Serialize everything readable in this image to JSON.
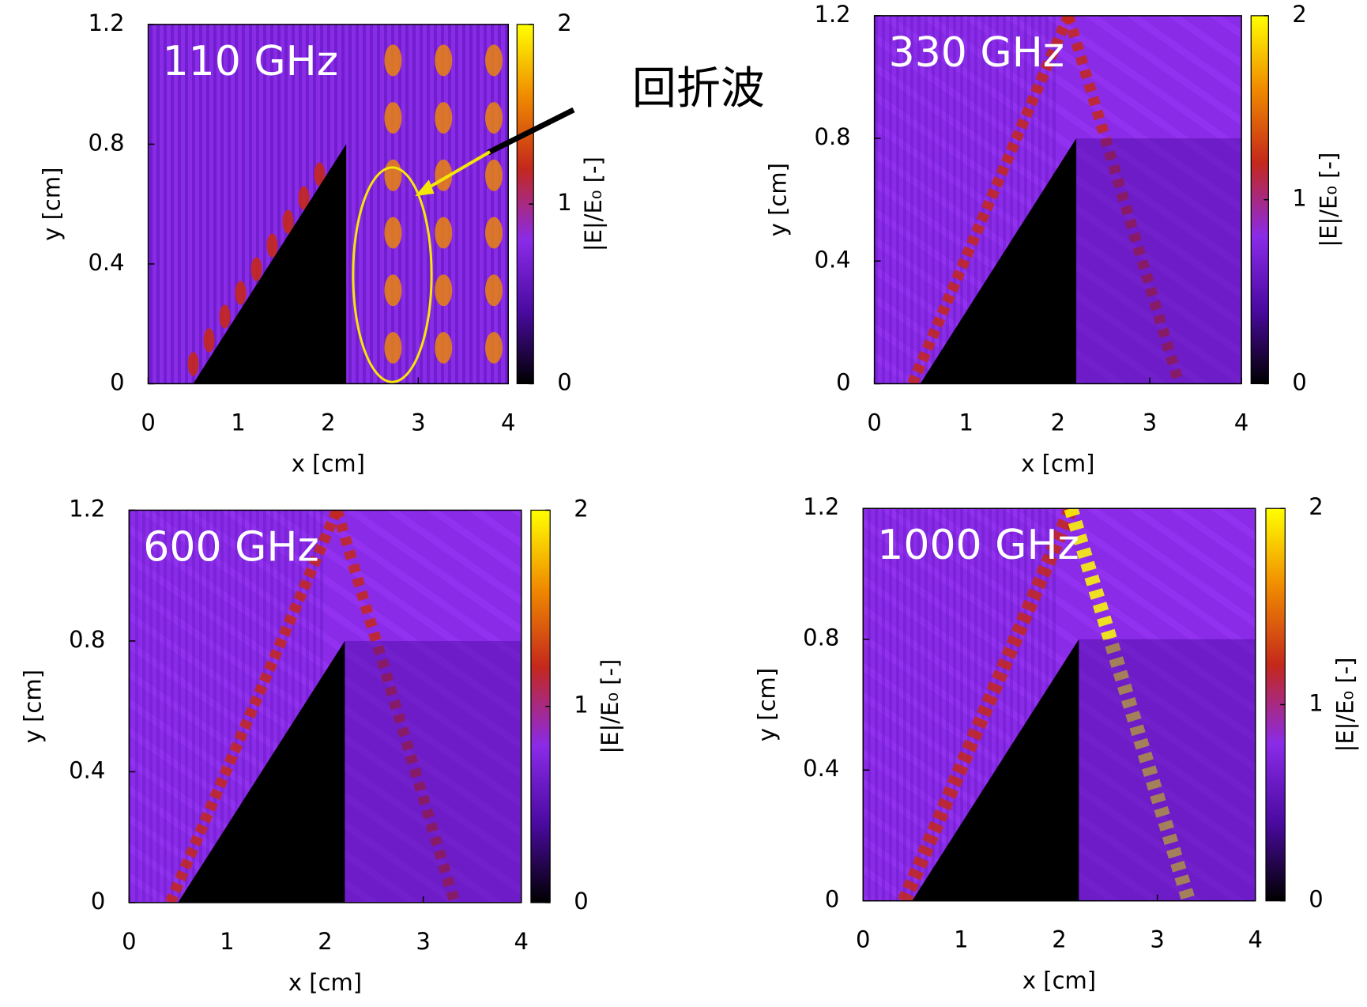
{
  "chart_data": [
    {
      "type": "heatmap",
      "title": "110 GHz",
      "xlabel": "x [cm]",
      "ylabel": "y [cm]",
      "xlim": [
        0,
        4
      ],
      "ylim": [
        0,
        1.2
      ],
      "xticks": [
        0,
        1,
        2,
        3,
        4
      ],
      "yticks": [
        0,
        0.4,
        0.8,
        1.2
      ],
      "colorbar": {
        "label": "|E|/E₀ [-]",
        "lim": [
          0,
          2
        ],
        "ticks": [
          0,
          1,
          2
        ],
        "colors": [
          "#000000",
          "#4a0aa0",
          "#8a2be8",
          "#c4281c",
          "#f08a00",
          "#ffff00"
        ]
      },
      "wedge": {
        "x": [
          0.5,
          2.2,
          2.2
        ],
        "y": [
          0,
          0.8,
          0
        ]
      },
      "annotation": "回折波"
    },
    {
      "type": "heatmap",
      "title": "330 GHz",
      "xlabel": "x [cm]",
      "ylabel": "y [cm]",
      "xlim": [
        0,
        4
      ],
      "ylim": [
        0,
        1.2
      ],
      "xticks": [
        0,
        1,
        2,
        3,
        4
      ],
      "yticks": [
        0,
        0.4,
        0.8,
        1.2
      ],
      "colorbar": {
        "label": "|E|/E₀ [-]",
        "lim": [
          0,
          2
        ],
        "ticks": [
          0,
          1,
          2
        ],
        "colors": [
          "#000000",
          "#4a0aa0",
          "#8a2be8",
          "#c4281c",
          "#f08a00",
          "#ffff00"
        ]
      },
      "wedge": {
        "x": [
          0.5,
          2.2,
          2.2
        ],
        "y": [
          0,
          0.8,
          0
        ]
      }
    },
    {
      "type": "heatmap",
      "title": "600 GHz",
      "xlabel": "x [cm]",
      "ylabel": "y [cm]",
      "xlim": [
        0,
        4
      ],
      "ylim": [
        0,
        1.2
      ],
      "xticks": [
        0,
        1,
        2,
        3,
        4
      ],
      "yticks": [
        0,
        0.4,
        0.8,
        1.2
      ],
      "colorbar": {
        "label": "|E|/E₀ [-]",
        "lim": [
          0,
          2
        ],
        "ticks": [
          0,
          1,
          2
        ],
        "colors": [
          "#000000",
          "#4a0aa0",
          "#8a2be8",
          "#c4281c",
          "#f08a00",
          "#ffff00"
        ]
      },
      "wedge": {
        "x": [
          0.5,
          2.2,
          2.2
        ],
        "y": [
          0,
          0.8,
          0
        ]
      }
    },
    {
      "type": "heatmap",
      "title": "1000 GHz",
      "xlabel": "x [cm]",
      "ylabel": "y [cm]",
      "xlim": [
        0,
        4
      ],
      "ylim": [
        0,
        1.2
      ],
      "xticks": [
        0,
        1,
        2,
        3,
        4
      ],
      "yticks": [
        0,
        0.4,
        0.8,
        1.2
      ],
      "colorbar": {
        "label": "|E|/E₀ [-]",
        "lim": [
          0,
          2
        ],
        "ticks": [
          0,
          1,
          2
        ],
        "colors": [
          "#000000",
          "#4a0aa0",
          "#8a2be8",
          "#c4281c",
          "#f08a00",
          "#ffff00"
        ]
      },
      "wedge": {
        "x": [
          0.5,
          2.2,
          2.2
        ],
        "y": [
          0,
          0.8,
          0
        ]
      }
    }
  ]
}
